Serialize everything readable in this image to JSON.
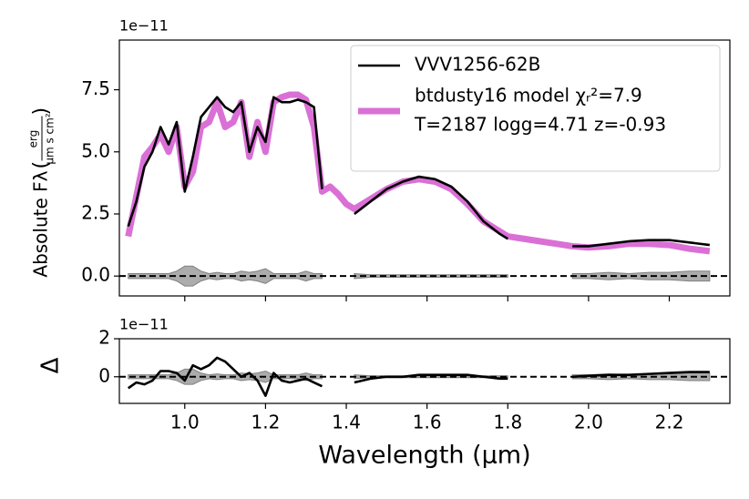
{
  "chart_data": [
    {
      "type": "line",
      "legend": "upper right",
      "offset_text": "1e−11",
      "ylabel": "Absolute Fλ",
      "ylabel_unit": {
        "num": "erg",
        "den": "µm s cm²"
      },
      "xlim": [
        0.838,
        2.35
      ],
      "xticks": [
        1.0,
        1.2,
        1.4,
        1.6,
        1.8,
        2.0,
        2.2
      ],
      "ylim": [
        -0.8,
        9.5
      ],
      "yticks": [
        {
          "value": 0,
          "label": "0.0"
        },
        2.5,
        {
          "value": 5,
          "label": "5.0"
        },
        7.5
      ],
      "hline": 0,
      "x": [
        0.86,
        0.88,
        0.9,
        0.92,
        0.94,
        0.96,
        0.98,
        1.0,
        1.02,
        1.04,
        1.06,
        1.08,
        1.1,
        1.12,
        1.14,
        1.16,
        1.18,
        1.2,
        1.22,
        1.24,
        1.26,
        1.28,
        1.3,
        1.32,
        1.34,
        1.36,
        1.38,
        1.4,
        1.42,
        1.46,
        1.5,
        1.54,
        1.58,
        1.62,
        1.66,
        1.7,
        1.74,
        1.78,
        1.8,
        1.84,
        1.88,
        1.92,
        1.96,
        2.0,
        2.05,
        2.1,
        2.15,
        2.2,
        2.25,
        2.3
      ],
      "band": {
        "color": "#808080",
        "values": [
          0.1,
          0.1,
          0.1,
          0.1,
          0.1,
          0.1,
          0.2,
          0.4,
          0.4,
          0.2,
          0.1,
          0.15,
          0.1,
          0.1,
          0.2,
          0.15,
          0.2,
          0.3,
          0.1,
          0.1,
          0.1,
          0.1,
          0.2,
          0.1,
          0.1,
          null,
          null,
          null,
          0.1,
          0.05,
          0.05,
          0.05,
          0.05,
          0.05,
          0.05,
          0.05,
          0.05,
          0.05,
          0.05,
          null,
          null,
          null,
          0.1,
          0.1,
          0.15,
          0.1,
          0.15,
          0.15,
          0.2,
          0.2
        ]
      },
      "series": [
        {
          "name": "btdusty16 model χᵣ²=7.9",
          "name_line2": "T=2187 logg=4.71 z=-0.93",
          "color": "#da70d6",
          "width": 7,
          "values": [
            1.6,
            3.2,
            4.8,
            5.2,
            5.7,
            5.0,
            6.0,
            3.6,
            4.2,
            6.0,
            6.2,
            7.0,
            6.0,
            6.2,
            7.0,
            4.8,
            6.2,
            5.0,
            7.0,
            7.2,
            7.3,
            7.3,
            7.1,
            6.0,
            3.4,
            3.6,
            3.3,
            2.9,
            2.7,
            3.1,
            3.5,
            3.8,
            3.9,
            3.8,
            3.5,
            2.9,
            2.2,
            1.8,
            1.6,
            1.5,
            1.4,
            1.3,
            1.2,
            1.15,
            1.2,
            1.3,
            1.3,
            1.25,
            1.1,
            1.0
          ]
        },
        {
          "name": "VVV1256-62B",
          "color": "#000000",
          "width": 2.6,
          "values": [
            2.0,
            3.0,
            4.4,
            5.0,
            6.0,
            5.3,
            6.2,
            3.4,
            4.8,
            6.4,
            6.8,
            7.2,
            6.8,
            6.6,
            7.0,
            5.0,
            6.0,
            5.4,
            7.2,
            7.0,
            7.0,
            7.1,
            7.0,
            6.8,
            3.5,
            null,
            null,
            null,
            2.5,
            3.0,
            3.5,
            3.8,
            4.0,
            3.9,
            3.6,
            3.0,
            2.2,
            1.7,
            1.5,
            null,
            null,
            null,
            1.2,
            1.2,
            1.3,
            1.4,
            1.45,
            1.45,
            1.35,
            1.25
          ]
        }
      ]
    },
    {
      "type": "line",
      "offset_text": "1e−11",
      "ylabel": "Δ",
      "xlabel": "Wavelength (µm)",
      "xlim": [
        0.838,
        2.35
      ],
      "xticks": [
        {
          "value": 1,
          "label": "1.0"
        },
        1.2,
        1.4,
        1.6,
        1.8,
        {
          "value": 2,
          "label": "2.0"
        },
        2.2
      ],
      "ylim": [
        -1.4,
        2
      ],
      "yticks": [
        0,
        2
      ],
      "hline": 0,
      "x": [
        0.86,
        0.88,
        0.9,
        0.92,
        0.94,
        0.96,
        0.98,
        1.0,
        1.02,
        1.04,
        1.06,
        1.08,
        1.1,
        1.12,
        1.14,
        1.16,
        1.18,
        1.2,
        1.22,
        1.24,
        1.26,
        1.28,
        1.3,
        1.32,
        1.34,
        1.36,
        1.38,
        1.4,
        1.42,
        1.46,
        1.5,
        1.54,
        1.58,
        1.62,
        1.66,
        1.7,
        1.74,
        1.78,
        1.8,
        1.84,
        1.88,
        1.92,
        1.96,
        2.0,
        2.05,
        2.1,
        2.15,
        2.2,
        2.25,
        2.3
      ],
      "band": {
        "color": "#808080",
        "values": [
          0.1,
          0.1,
          0.1,
          0.1,
          0.1,
          0.1,
          0.2,
          0.4,
          0.4,
          0.2,
          0.1,
          0.15,
          0.1,
          0.1,
          0.2,
          0.15,
          0.2,
          0.3,
          0.1,
          0.1,
          0.1,
          0.1,
          0.2,
          0.1,
          0.1,
          null,
          null,
          null,
          0.1,
          0.05,
          0.05,
          0.05,
          0.05,
          0.05,
          0.05,
          0.05,
          0.05,
          0.05,
          0.05,
          null,
          null,
          null,
          0.1,
          0.1,
          0.15,
          0.1,
          0.15,
          0.15,
          0.2,
          0.2
        ]
      },
      "series": [
        {
          "color": "#000000",
          "width": 2.6,
          "values": [
            -0.6,
            -0.3,
            -0.4,
            -0.2,
            0.3,
            0.3,
            0.2,
            -0.2,
            0.6,
            0.4,
            0.6,
            1.0,
            0.8,
            0.4,
            0.0,
            0.2,
            -0.2,
            -1.0,
            0.2,
            -0.2,
            -0.3,
            -0.2,
            -0.1,
            -0.3,
            -0.5,
            null,
            null,
            null,
            -0.3,
            -0.1,
            0.0,
            0.0,
            0.1,
            0.1,
            0.1,
            0.1,
            0.0,
            -0.1,
            -0.1,
            null,
            null,
            null,
            0.0,
            0.05,
            0.1,
            0.1,
            0.15,
            0.2,
            0.25,
            0.25
          ]
        }
      ]
    }
  ]
}
